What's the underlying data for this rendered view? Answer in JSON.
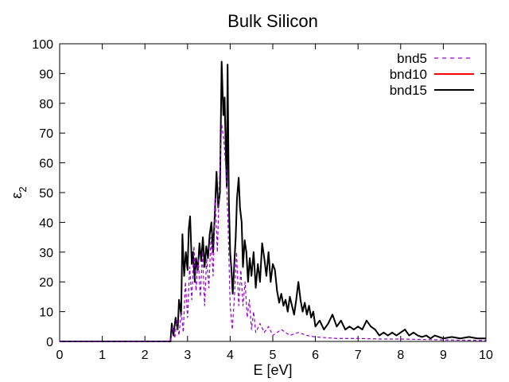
{
  "chart_data": {
    "type": "line",
    "title": "Bulk Silicon",
    "xlabel": "E [eV]",
    "ylabel_main": "ε",
    "ylabel_sub": "2",
    "xlim": [
      0,
      10
    ],
    "ylim": [
      0,
      100
    ],
    "xticks": [
      "0",
      "1",
      "2",
      "3",
      "4",
      "5",
      "6",
      "7",
      "8",
      "9",
      "10"
    ],
    "yticks": [
      "0",
      "10",
      "20",
      "30",
      "40",
      "50",
      "60",
      "70",
      "80",
      "90",
      "100"
    ],
    "grid": false,
    "legend_position": "top-right",
    "series": [
      {
        "name": "bnd5",
        "color": "#9400d3",
        "style": "dashed",
        "points": [
          [
            0,
            0
          ],
          [
            2.5,
            0
          ],
          [
            2.6,
            0
          ],
          [
            2.65,
            5
          ],
          [
            2.7,
            1
          ],
          [
            2.75,
            7
          ],
          [
            2.8,
            2
          ],
          [
            2.85,
            10
          ],
          [
            2.9,
            3
          ],
          [
            2.95,
            20
          ],
          [
            3.0,
            8
          ],
          [
            3.05,
            25
          ],
          [
            3.1,
            14
          ],
          [
            3.15,
            32
          ],
          [
            3.2,
            17
          ],
          [
            3.25,
            28
          ],
          [
            3.3,
            15
          ],
          [
            3.35,
            30
          ],
          [
            3.4,
            12
          ],
          [
            3.45,
            28
          ],
          [
            3.5,
            18
          ],
          [
            3.55,
            35
          ],
          [
            3.6,
            22
          ],
          [
            3.65,
            48
          ],
          [
            3.7,
            30
          ],
          [
            3.75,
            55
          ],
          [
            3.8,
            73
          ],
          [
            3.85,
            68
          ],
          [
            3.9,
            58
          ],
          [
            3.95,
            40
          ],
          [
            4.0,
            12
          ],
          [
            4.05,
            4
          ],
          [
            4.1,
            15
          ],
          [
            4.15,
            30
          ],
          [
            4.2,
            12
          ],
          [
            4.25,
            24
          ],
          [
            4.3,
            12
          ],
          [
            4.35,
            20
          ],
          [
            4.4,
            8
          ],
          [
            4.45,
            14
          ],
          [
            4.5,
            4
          ],
          [
            4.55,
            10
          ],
          [
            4.6,
            3
          ],
          [
            4.7,
            6
          ],
          [
            4.8,
            3
          ],
          [
            4.9,
            5
          ],
          [
            5.0,
            2
          ],
          [
            5.2,
            4
          ],
          [
            5.4,
            2
          ],
          [
            5.6,
            3
          ],
          [
            5.8,
            2
          ],
          [
            6.0,
            1.5
          ],
          [
            6.5,
            1
          ],
          [
            7.0,
            1
          ],
          [
            7.5,
            0.8
          ],
          [
            8.0,
            0.8
          ],
          [
            9.0,
            0.5
          ],
          [
            10,
            0.3
          ]
        ]
      },
      {
        "name": "bnd10",
        "color": "#ff0000",
        "style": "solid",
        "points": []
      },
      {
        "name": "bnd15",
        "color": "#000000",
        "style": "solid",
        "points": [
          [
            0,
            0
          ],
          [
            2.5,
            0
          ],
          [
            2.6,
            0
          ],
          [
            2.63,
            6
          ],
          [
            2.67,
            2
          ],
          [
            2.72,
            8
          ],
          [
            2.77,
            4
          ],
          [
            2.8,
            14
          ],
          [
            2.85,
            9
          ],
          [
            2.88,
            36
          ],
          [
            2.92,
            22
          ],
          [
            2.96,
            30
          ],
          [
            3.0,
            24
          ],
          [
            3.03,
            38
          ],
          [
            3.06,
            42
          ],
          [
            3.1,
            26
          ],
          [
            3.13,
            30
          ],
          [
            3.17,
            20
          ],
          [
            3.2,
            28
          ],
          [
            3.24,
            24
          ],
          [
            3.28,
            33
          ],
          [
            3.32,
            27
          ],
          [
            3.36,
            35
          ],
          [
            3.4,
            25
          ],
          [
            3.44,
            32
          ],
          [
            3.48,
            28
          ],
          [
            3.52,
            36
          ],
          [
            3.56,
            40
          ],
          [
            3.6,
            30
          ],
          [
            3.64,
            43
          ],
          [
            3.68,
            57
          ],
          [
            3.72,
            45
          ],
          [
            3.76,
            50
          ],
          [
            3.8,
            94
          ],
          [
            3.84,
            76
          ],
          [
            3.87,
            82
          ],
          [
            3.9,
            62
          ],
          [
            3.92,
            52
          ],
          [
            3.94,
            93
          ],
          [
            3.97,
            47
          ],
          [
            4.0,
            30
          ],
          [
            4.03,
            24
          ],
          [
            4.06,
            16
          ],
          [
            4.1,
            27
          ],
          [
            4.13,
            35
          ],
          [
            4.16,
            48
          ],
          [
            4.2,
            55
          ],
          [
            4.23,
            45
          ],
          [
            4.27,
            40
          ],
          [
            4.3,
            25
          ],
          [
            4.34,
            34
          ],
          [
            4.38,
            30
          ],
          [
            4.42,
            20
          ],
          [
            4.46,
            28
          ],
          [
            4.5,
            22
          ],
          [
            4.55,
            30
          ],
          [
            4.6,
            18
          ],
          [
            4.65,
            26
          ],
          [
            4.7,
            20
          ],
          [
            4.75,
            33
          ],
          [
            4.8,
            28
          ],
          [
            4.85,
            22
          ],
          [
            4.9,
            30
          ],
          [
            4.95,
            20
          ],
          [
            5.0,
            26
          ],
          [
            5.05,
            24
          ],
          [
            5.1,
            17
          ],
          [
            5.15,
            13
          ],
          [
            5.2,
            16
          ],
          [
            5.25,
            12
          ],
          [
            5.3,
            14
          ],
          [
            5.35,
            10
          ],
          [
            5.4,
            15
          ],
          [
            5.45,
            12
          ],
          [
            5.5,
            9
          ],
          [
            5.55,
            14
          ],
          [
            5.6,
            20
          ],
          [
            5.65,
            14
          ],
          [
            5.7,
            10
          ],
          [
            5.75,
            13
          ],
          [
            5.8,
            9
          ],
          [
            5.85,
            12
          ],
          [
            5.9,
            8
          ],
          [
            5.95,
            10
          ],
          [
            6.0,
            5
          ],
          [
            6.1,
            7
          ],
          [
            6.2,
            4
          ],
          [
            6.3,
            6
          ],
          [
            6.4,
            9
          ],
          [
            6.5,
            5
          ],
          [
            6.6,
            7
          ],
          [
            6.7,
            4
          ],
          [
            6.8,
            5
          ],
          [
            6.9,
            4
          ],
          [
            7.0,
            5
          ],
          [
            7.1,
            4
          ],
          [
            7.2,
            7
          ],
          [
            7.3,
            5
          ],
          [
            7.4,
            4
          ],
          [
            7.5,
            2
          ],
          [
            7.6,
            3
          ],
          [
            7.7,
            2
          ],
          [
            7.8,
            3
          ],
          [
            7.9,
            2
          ],
          [
            8.0,
            3
          ],
          [
            8.1,
            4
          ],
          [
            8.2,
            2
          ],
          [
            8.3,
            3
          ],
          [
            8.4,
            2
          ],
          [
            8.5,
            1.5
          ],
          [
            8.6,
            2
          ],
          [
            8.7,
            1
          ],
          [
            8.8,
            2
          ],
          [
            8.9,
            1.5
          ],
          [
            9.0,
            1
          ],
          [
            9.2,
            1.5
          ],
          [
            9.4,
            1
          ],
          [
            9.6,
            1.5
          ],
          [
            9.8,
            1
          ],
          [
            10,
            1
          ]
        ]
      }
    ]
  }
}
